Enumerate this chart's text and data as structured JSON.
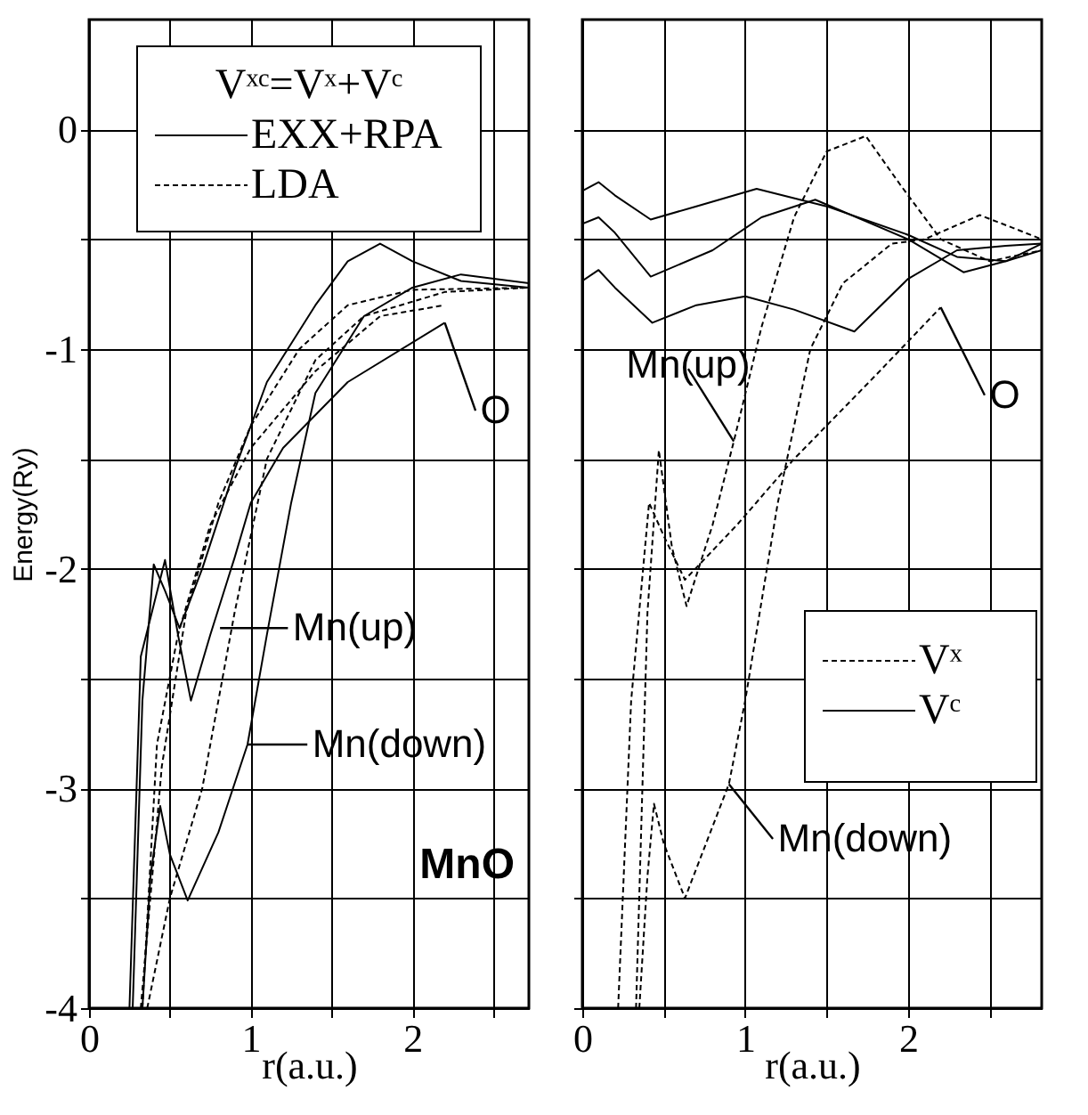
{
  "chart_data": [
    {
      "type": "line",
      "ylabel": "Energy(Ry)",
      "xlabel": "r(a.u.)",
      "legend_title": "Vˣᶜ=Vˣ+Vᶜ",
      "legend": "top left",
      "grid": true,
      "marker": "none",
      "xlim": [
        0,
        2.72
      ],
      "ylim": [
        -4,
        0.5
      ],
      "xticks": [
        0,
        {
          "value": 0.5,
          "label": null
        },
        1,
        {
          "value": 1.5,
          "label": null
        },
        2,
        {
          "value": 2.5,
          "label": null
        }
      ],
      "yticks": [
        -4,
        {
          "value": -3.5,
          "label": null
        },
        -3,
        {
          "value": -2.5,
          "label": null
        },
        -2,
        {
          "value": -1.5,
          "label": null
        },
        -1,
        {
          "value": -0.5,
          "label": null
        },
        0
      ],
      "series": [
        {
          "name": "EXX+RPA",
          "color": "#000000",
          "line_style": "solid",
          "x": [
            0.27,
            0.33,
            0.4,
            0.47,
            0.56,
            0.7,
            0.9,
            1.1,
            1.4,
            1.6,
            1.8,
            2.0,
            2.3,
            2.72
          ],
          "values": [
            -4,
            -2.6,
            -1.98,
            -2.1,
            -2.27,
            -2.0,
            -1.55,
            -1.15,
            -0.8,
            -0.6,
            -0.52,
            -0.6,
            -0.69,
            -0.72
          ]
        },
        {
          "color": "#000000",
          "line_style": "solid",
          "x": [
            0.33,
            0.38,
            0.44,
            0.5,
            0.61,
            0.8,
            0.98,
            1.1,
            1.25,
            1.4,
            1.7,
            2.0,
            2.3,
            2.72
          ],
          "values": [
            -4,
            -3.4,
            -3.08,
            -3.3,
            -3.51,
            -3.2,
            -2.8,
            -2.3,
            -1.7,
            -1.2,
            -0.85,
            -0.72,
            -0.66,
            -0.7
          ]
        },
        {
          "color": "#000000",
          "line_style": "solid",
          "x": [
            0.25,
            0.32,
            0.47,
            0.55,
            0.63,
            0.75,
            0.9,
            1.0,
            1.2,
            1.6,
            2.2
          ],
          "values": [
            -4,
            -2.4,
            -1.96,
            -2.3,
            -2.6,
            -2.3,
            -1.95,
            -1.7,
            -1.45,
            -1.15,
            -0.88
          ]
        },
        {
          "name": "LDA",
          "color": "#000000",
          "line_style": "dashed",
          "x": [
            0.32,
            0.45,
            0.6,
            0.8,
            1.0,
            1.3,
            1.6,
            2.0,
            2.72
          ],
          "values": [
            -4,
            -2.9,
            -2.2,
            -1.7,
            -1.35,
            -1.0,
            -0.8,
            -0.73,
            -0.72
          ]
        },
        {
          "color": "#000000",
          "line_style": "dashed",
          "x": [
            0.36,
            0.5,
            0.7,
            0.9,
            1.1,
            1.4,
            1.7,
            2.2,
            2.72
          ],
          "values": [
            -4,
            -3.5,
            -3.0,
            -2.2,
            -1.5,
            -1.05,
            -0.85,
            -0.74,
            -0.72
          ]
        },
        {
          "color": "#000000",
          "line_style": "dashed",
          "x": [
            0.33,
            0.42,
            0.55,
            0.75,
            1.0,
            1.4,
            1.8,
            2.2
          ],
          "values": [
            -4,
            -2.8,
            -2.3,
            -1.8,
            -1.45,
            -1.1,
            -0.85,
            -0.8
          ]
        }
      ],
      "annotations": [
        {
          "text": "O",
          "x": 2.2,
          "y": -0.88
        },
        {
          "text": "Mn(up)",
          "x": 0.81,
          "y": -2.27
        },
        {
          "text": "Mn(down)",
          "x": 0.98,
          "y": -2.8
        },
        "MnO"
      ]
    },
    {
      "type": "line",
      "xlabel": "r(a.u.)",
      "legend": "bottom right",
      "grid": true,
      "marker": "none",
      "tick_labels": "x",
      "xlim": [
        0,
        2.82
      ],
      "ylim": [
        -4,
        0.5
      ],
      "xticks": [
        0,
        {
          "value": 0.5,
          "label": null
        },
        1,
        {
          "value": 1.5,
          "label": null
        },
        2,
        {
          "value": 2.5,
          "label": null
        }
      ],
      "yticks": [
        -4,
        {
          "value": -3.5,
          "label": null
        },
        -3,
        {
          "value": -2.5,
          "label": null
        },
        -2,
        {
          "value": -1.5,
          "label": null
        },
        -1,
        {
          "value": -0.5,
          "label": null
        },
        0
      ],
      "series": [
        {
          "name": "Vˣ",
          "color": "#000000",
          "line_style": "dashed",
          "x": [
            0.33,
            0.4,
            0.47,
            0.55,
            0.64,
            0.8,
            0.93,
            1.1,
            1.3,
            1.5,
            1.74,
            1.95,
            2.2,
            2.5,
            2.82
          ],
          "values": [
            -4,
            -2.2,
            -1.46,
            -1.9,
            -2.17,
            -1.8,
            -1.42,
            -0.9,
            -0.4,
            -0.1,
            -0.03,
            -0.25,
            -0.5,
            -0.6,
            -0.55
          ]
        },
        {
          "color": "#000000",
          "line_style": "dashed",
          "x": [
            0.22,
            0.3,
            0.41,
            0.5,
            0.63,
            0.95,
            1.3,
            1.8,
            2.2
          ],
          "values": [
            -4,
            -2.6,
            -1.7,
            -1.85,
            -2.05,
            -1.8,
            -1.5,
            -1.12,
            -0.81
          ]
        },
        {
          "color": "#000000",
          "line_style": "dashed",
          "x": [
            0.35,
            0.4,
            0.44,
            0.5,
            0.63,
            0.9,
            1.0,
            1.2,
            1.4,
            1.6,
            1.9,
            2.1,
            2.44,
            2.65,
            2.82
          ],
          "values": [
            -4,
            -3.4,
            -3.07,
            -3.25,
            -3.5,
            -2.98,
            -2.6,
            -1.7,
            -1.0,
            -0.7,
            -0.52,
            -0.5,
            -0.39,
            -0.45,
            -0.5
          ]
        },
        {
          "name": "Vᶜ",
          "color": "#000000",
          "line_style": "solid",
          "x": [
            0,
            0.1,
            0.2,
            0.42,
            0.7,
            1.07,
            1.5,
            2.0,
            2.3,
            2.6,
            2.82
          ],
          "values": [
            -0.28,
            -0.24,
            -0.3,
            -0.41,
            -0.35,
            -0.27,
            -0.35,
            -0.48,
            -0.58,
            -0.6,
            -0.55
          ]
        },
        {
          "color": "#000000",
          "line_style": "solid",
          "x": [
            0,
            0.1,
            0.2,
            0.42,
            0.8,
            1.1,
            1.43,
            2.0,
            2.34,
            2.6,
            2.82
          ],
          "values": [
            -0.43,
            -0.4,
            -0.47,
            -0.67,
            -0.55,
            -0.4,
            -0.32,
            -0.5,
            -0.65,
            -0.6,
            -0.52
          ]
        },
        {
          "color": "#000000",
          "line_style": "solid",
          "x": [
            0,
            0.1,
            0.2,
            0.43,
            0.7,
            1.0,
            1.3,
            1.67,
            2.0,
            2.3,
            2.6,
            2.82
          ],
          "values": [
            -0.69,
            -0.64,
            -0.72,
            -0.88,
            -0.8,
            -0.76,
            -0.82,
            -0.92,
            -0.68,
            -0.55,
            -0.53,
            -0.52
          ]
        }
      ],
      "annotations": [
        {
          "text": "Mn(up)",
          "x": 0.93,
          "y": -1.42
        },
        {
          "text": "O",
          "x": 2.2,
          "y": -0.81
        },
        {
          "text": "Mn(down)",
          "x": 0.9,
          "y": -2.98
        }
      ]
    }
  ]
}
